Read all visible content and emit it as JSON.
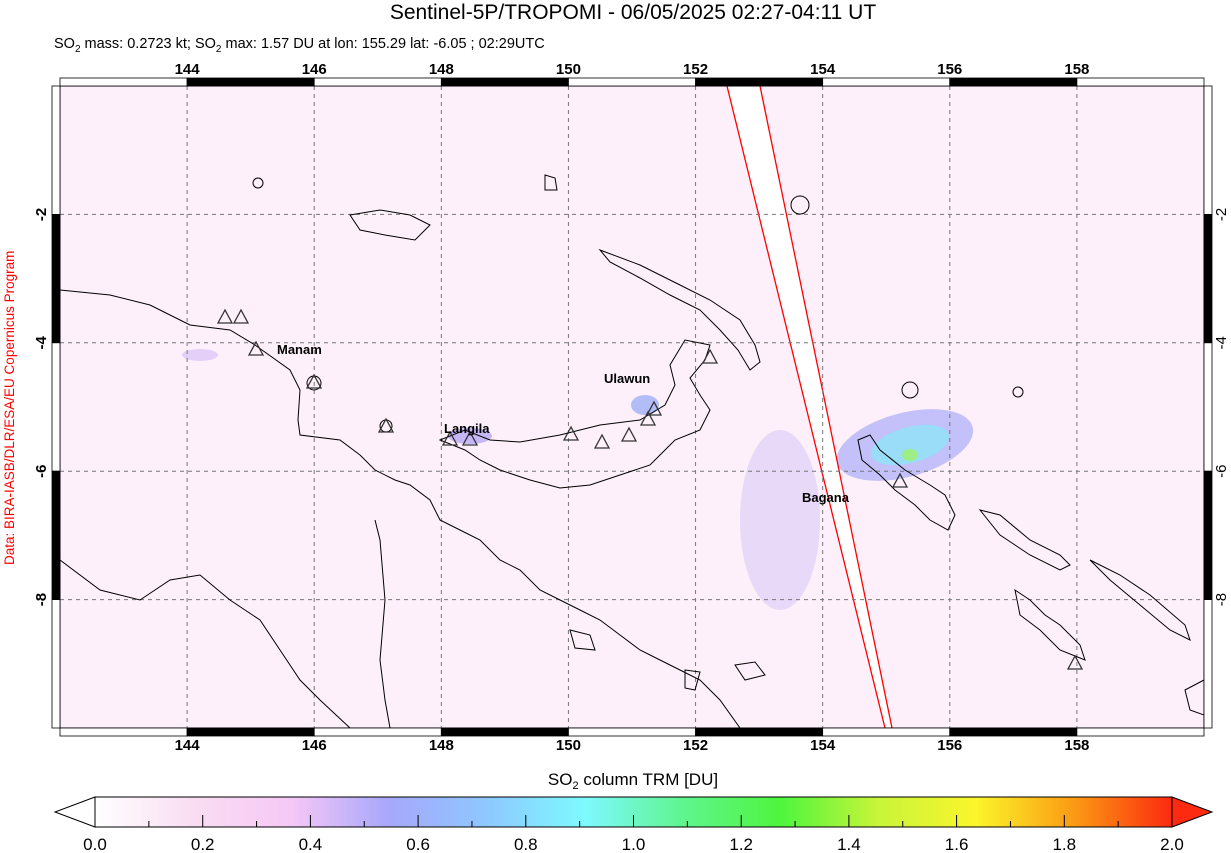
{
  "title": "Sentinel-5P/TROPOMI - 06/05/2025 02:27-04:11 UT",
  "subtitle": {
    "mass_prefix": "SO",
    "mass_sub": "2",
    "mass_text": " mass: 0.2723 kt; SO",
    "max_sub": "2",
    "max_text": " max: 1.57 DU at lon: 155.29 lat: -6.05 ; 02:29UTC"
  },
  "credit": "Data: BIRA-IASB/DLR/ESA/EU Copernicus Program",
  "map": {
    "lon_range": [
      142,
      160
    ],
    "lat_range": [
      -10,
      0
    ],
    "lon_ticks": [
      "144",
      "146",
      "148",
      "150",
      "152",
      "154",
      "156",
      "158"
    ],
    "lat_ticks": [
      "-2",
      "-4",
      "-6",
      "-8"
    ],
    "grid": "dashed",
    "volcanoes": [
      {
        "name": "Manam"
      },
      {
        "name": "Langila"
      },
      {
        "name": "Ulawun"
      },
      {
        "name": "Bagana"
      }
    ],
    "colors": {
      "orbit_edge": "#ff0000",
      "coast": "#000000",
      "background": "#fdf0fa"
    }
  },
  "colorbar": {
    "label_prefix": "SO",
    "label_sub": "2",
    "label_text": " column TRM [DU]",
    "ticks": [
      "0.0",
      "0.2",
      "0.4",
      "0.6",
      "0.8",
      "1.0",
      "1.2",
      "1.4",
      "1.6",
      "1.8",
      "2.0"
    ],
    "range": [
      0,
      2
    ],
    "stops": [
      "#ffffff",
      "#f9ddf2",
      "#f6c8f6",
      "#a7a7fb",
      "#8ec8ff",
      "#7ef9ff",
      "#5ff58f",
      "#4ef53e",
      "#c8f53a",
      "#fbf52b",
      "#fb9a14",
      "#fb2a10"
    ]
  }
}
